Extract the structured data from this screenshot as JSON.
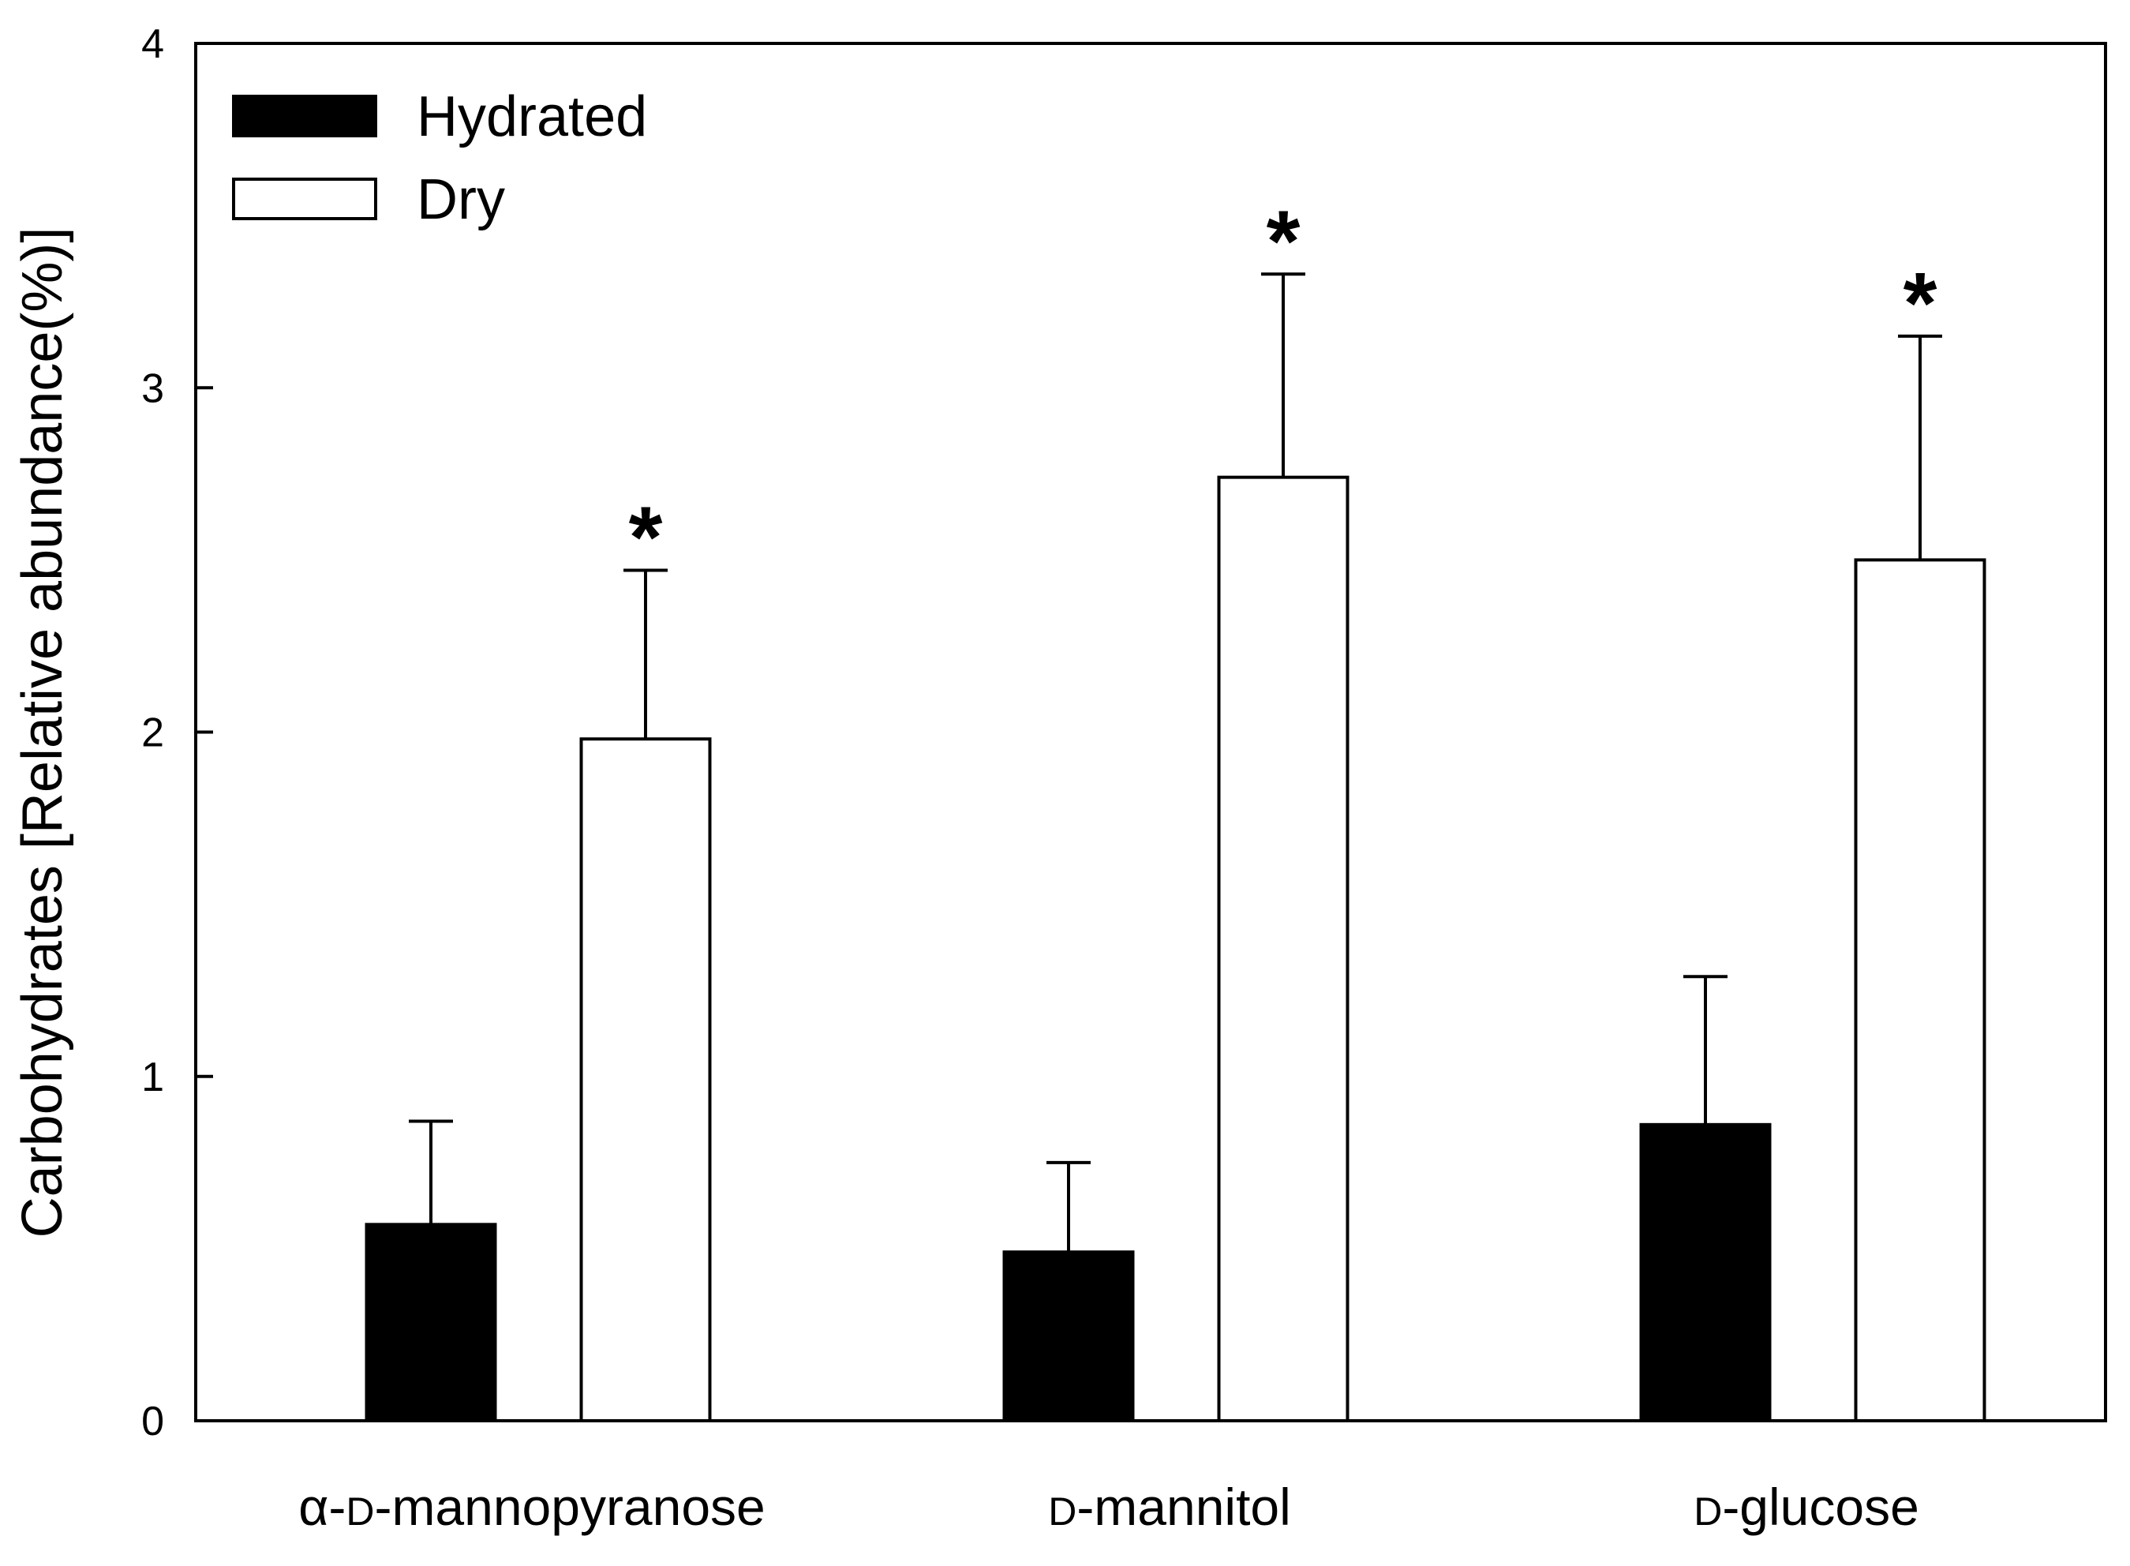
{
  "chart_data": {
    "type": "bar",
    "categories": [
      "α-D-mannopyranose",
      "D-mannitol",
      "D-glucose"
    ],
    "series": [
      {
        "name": "Hydrated",
        "values": [
          0.57,
          0.49,
          0.86
        ],
        "errors": [
          0.3,
          0.26,
          0.43
        ],
        "fill": "#000000"
      },
      {
        "name": "Dry",
        "values": [
          1.98,
          2.74,
          2.5
        ],
        "errors": [
          0.49,
          0.59,
          0.65
        ],
        "fill": "#ffffff"
      }
    ],
    "significance": [
      {
        "series": "Dry",
        "category": "α-D-mannopyranose",
        "mark": "*"
      },
      {
        "series": "Dry",
        "category": "D-mannitol",
        "mark": "*"
      },
      {
        "series": "Dry",
        "category": "D-glucose",
        "mark": "*"
      }
    ],
    "ylabel": "Carbohydrates [Relative abundance(%)]",
    "xlabel": "",
    "ylim": [
      0,
      4
    ],
    "yticks": [
      0,
      1,
      2,
      3,
      4
    ],
    "grid": false,
    "legend_position": "top-left",
    "error_bars": "upper"
  }
}
